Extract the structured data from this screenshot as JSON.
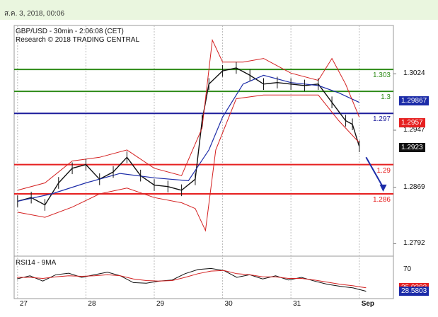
{
  "header": {
    "date_text": "ส.ค. 3, 2018, 00:06"
  },
  "chart": {
    "title_line1": "GBP/USD - 30min - 2:06:08 (CET)",
    "title_line2": "Research © 2018 TRADING CENTRAL",
    "y_tick_labels": [
      "1.3024",
      "1.2947",
      "1.2869",
      "1.2792"
    ],
    "x_tick_labels": [
      "27",
      "28",
      "29",
      "30",
      "31",
      "Sep"
    ],
    "rsi_title": "RSI14 - 9MA",
    "rsi_tick_labels": [
      "70",
      "30"
    ]
  },
  "levels": [
    {
      "label": "1.303",
      "value": 1.303,
      "color": "#2e8b18"
    },
    {
      "label": "1.3",
      "value": 1.3,
      "color": "#2e8b18"
    },
    {
      "label": "1.297",
      "value": 1.297,
      "color": "#1c1c9c"
    },
    {
      "label": "1.29",
      "value": 1.29,
      "color": "#e62020"
    },
    {
      "label": "1.286",
      "value": 1.286,
      "color": "#e62020"
    }
  ],
  "price_tags": [
    {
      "label": "1.29867",
      "value": 1.29867,
      "bg": "#1c2ca8",
      "fg": "#ffffff"
    },
    {
      "label": "1.2957",
      "value": 1.2957,
      "bg": "#e62020",
      "fg": "#ffffff"
    },
    {
      "label": "1.2923",
      "value": 1.2923,
      "bg": "#111111",
      "fg": "#ffffff"
    }
  ],
  "rsi_tags": [
    {
      "label": "35.0383",
      "value": 35.0383,
      "bg": "#e62020",
      "fg": "#ffffff"
    },
    {
      "label": "28.5803",
      "value": 28.5803,
      "bg": "#1c2ca8",
      "fg": "#ffffff"
    }
  ],
  "chart_data": {
    "type": "line",
    "title": "GBP/USD - 30min - 2:06:08 (CET)",
    "x_categories": [
      "27",
      "28",
      "29",
      "30",
      "31",
      "Sep"
    ],
    "ylim": [
      1.2775,
      1.309
    ],
    "yticks": [
      1.3024,
      1.2947,
      1.2869,
      1.2792
    ],
    "series": [
      {
        "name": "",
        "style": "close",
        "x": [
          27.0,
          27.2,
          27.4,
          27.6,
          27.8,
          28.0,
          28.2,
          28.4,
          28.6,
          28.8,
          29.0,
          29.2,
          29.4,
          29.6,
          29.7,
          29.8,
          30.0,
          30.2,
          30.4,
          30.6,
          30.8,
          31.0,
          31.2,
          31.4,
          31.6,
          31.8,
          31.9,
          32.0
        ],
        "y": [
          1.285,
          1.2855,
          1.2845,
          1.2875,
          1.2895,
          1.29,
          1.288,
          1.289,
          1.291,
          1.2885,
          1.2872,
          1.287,
          1.2865,
          1.288,
          1.296,
          1.301,
          1.3028,
          1.3032,
          1.3022,
          1.301,
          1.3012,
          1.301,
          1.3008,
          1.301,
          1.2985,
          1.296,
          1.2955,
          1.2925
        ]
      },
      {
        "name": "",
        "style": "ma",
        "x": [
          27.0,
          27.5,
          28.0,
          28.5,
          29.0,
          29.5,
          29.8,
          30.0,
          30.3,
          30.6,
          31.0,
          31.4,
          31.7,
          32.0
        ],
        "y": [
          1.285,
          1.286,
          1.2875,
          1.2888,
          1.2882,
          1.2878,
          1.292,
          1.2965,
          1.301,
          1.3022,
          1.3012,
          1.3008,
          1.2998,
          1.2985
        ]
      },
      {
        "name": "",
        "style": "band-upper",
        "x": [
          27.0,
          27.4,
          27.8,
          28.2,
          28.6,
          29.0,
          29.4,
          29.7,
          29.85,
          30.0,
          30.3,
          30.6,
          31.0,
          31.4,
          31.6,
          31.8,
          32.0
        ],
        "y": [
          1.2865,
          1.2875,
          1.2905,
          1.291,
          1.292,
          1.2895,
          1.2885,
          1.295,
          1.307,
          1.304,
          1.304,
          1.3045,
          1.3025,
          1.3015,
          1.3045,
          1.301,
          1.2965
        ]
      },
      {
        "name": "",
        "style": "band-lower",
        "x": [
          27.0,
          27.4,
          27.8,
          28.2,
          28.6,
          29.0,
          29.4,
          29.6,
          29.75,
          29.9,
          30.2,
          30.6,
          31.0,
          31.4,
          31.7,
          32.0
        ],
        "y": [
          1.2835,
          1.2828,
          1.2842,
          1.286,
          1.2868,
          1.2855,
          1.2848,
          1.284,
          1.281,
          1.292,
          1.299,
          1.2995,
          1.2995,
          1.2995,
          1.296,
          1.293
        ]
      }
    ],
    "projection": {
      "from": [
        32.1,
        1.291
      ],
      "to": [
        32.35,
        1.2863
      ]
    },
    "rsi": {
      "ylim": [
        20,
        90
      ],
      "yticks": [
        70,
        30
      ],
      "rsi14": [
        52,
        58,
        48,
        60,
        63,
        55,
        60,
        65,
        58,
        45,
        44,
        48,
        50,
        62,
        70,
        72,
        68,
        55,
        60,
        52,
        58,
        50,
        55,
        48,
        42,
        38,
        35,
        28.58
      ],
      "ma9": [
        55,
        55,
        53,
        56,
        58,
        57,
        58,
        60,
        58,
        52,
        49,
        48,
        49,
        55,
        62,
        67,
        68,
        62,
        60,
        56,
        56,
        53,
        53,
        50,
        46,
        42,
        39,
        35.04
      ]
    }
  }
}
